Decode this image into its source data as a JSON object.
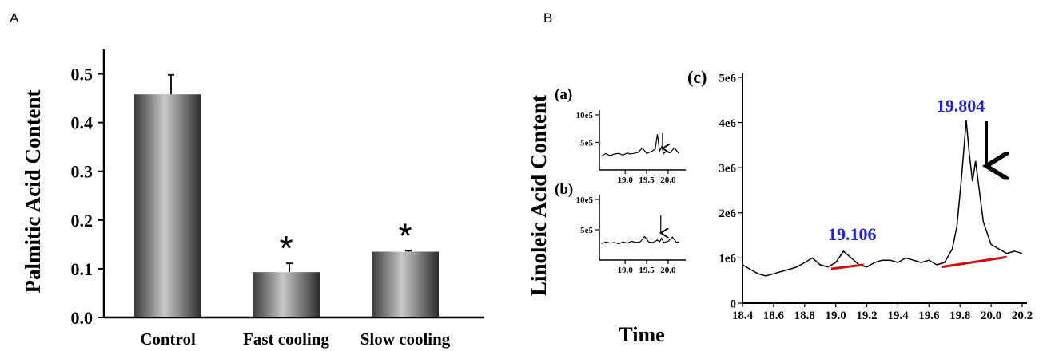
{
  "panels": {
    "a_letter": "A",
    "b_letter": "B"
  },
  "chart_data": [
    {
      "panel": "A",
      "type": "bar",
      "categories": [
        "Control",
        "Fast cooling",
        "Slow cooling"
      ],
      "values": [
        0.458,
        0.093,
        0.135
      ],
      "errors": [
        0.04,
        0.018,
        0.002
      ],
      "significance": [
        "",
        "*",
        "*"
      ],
      "ylabel": "Palmitic Acid Content",
      "xlabel": "",
      "ylim": [
        0,
        0.55
      ],
      "yticks": [
        "0.0",
        "0.1",
        "0.2",
        "0.3",
        "0.4",
        "0.5"
      ],
      "grid": false
    },
    {
      "panel": "B",
      "shared_ylabel": "Linoleic Acid Content",
      "shared_xlabel": "Time",
      "subplots": [
        {
          "label": "(a)",
          "type": "line",
          "xlim": [
            18.4,
            20.3
          ],
          "ylim": [
            0,
            1000000
          ],
          "yticks": [
            "5e5",
            "10e5"
          ],
          "xticks": [
            "19.0",
            "19.5",
            "20.0"
          ],
          "x": [
            18.45,
            18.55,
            18.65,
            18.75,
            18.85,
            18.95,
            19.05,
            19.1,
            19.2,
            19.3,
            19.4,
            19.5,
            19.6,
            19.7,
            19.75,
            19.8,
            19.85,
            19.9,
            19.95,
            20.05,
            20.15,
            20.25
          ],
          "y": [
            250000,
            300000,
            260000,
            290000,
            300000,
            270000,
            310000,
            290000,
            300000,
            320000,
            400000,
            300000,
            330000,
            380000,
            650000,
            340000,
            420000,
            300000,
            330000,
            320000,
            400000,
            300000
          ],
          "arrow_at_x": 19.87
        },
        {
          "label": "(b)",
          "type": "line",
          "xlim": [
            18.4,
            20.3
          ],
          "ylim": [
            0,
            1000000
          ],
          "yticks": [
            "5e5",
            "10e5"
          ],
          "xticks": [
            "19.0",
            "19.5",
            "20.0"
          ],
          "x": [
            18.45,
            18.55,
            18.65,
            18.75,
            18.85,
            18.95,
            19.05,
            19.15,
            19.25,
            19.35,
            19.45,
            19.55,
            19.65,
            19.75,
            19.8,
            19.85,
            19.9,
            20.0,
            20.1,
            20.2,
            20.25
          ],
          "y": [
            270000,
            300000,
            280000,
            290000,
            270000,
            300000,
            280000,
            310000,
            290000,
            300000,
            390000,
            300000,
            290000,
            330000,
            300000,
            360000,
            290000,
            310000,
            380000,
            290000,
            300000
          ],
          "arrow_at_x": 19.83
        },
        {
          "label": "(c)",
          "type": "line",
          "xlim": [
            18.4,
            20.2
          ],
          "ylim": [
            0,
            5000000
          ],
          "yticks": [
            "0",
            "1e6",
            "2e6",
            "3e6",
            "4e6",
            "5e6"
          ],
          "xticks": [
            "18.4",
            "18.6",
            "18.8",
            "19.0",
            "19.2",
            "19.4",
            "19.6",
            "19.8",
            "20.0",
            "20.2"
          ],
          "x": [
            18.4,
            18.45,
            18.5,
            18.55,
            18.6,
            18.65,
            18.7,
            18.75,
            18.8,
            18.85,
            18.9,
            18.95,
            19.0,
            19.05,
            19.1,
            19.15,
            19.2,
            19.25,
            19.3,
            19.35,
            19.4,
            19.45,
            19.5,
            19.55,
            19.6,
            19.65,
            19.7,
            19.75,
            19.78,
            19.81,
            19.84,
            19.86,
            19.88,
            19.9,
            19.92,
            19.95,
            19.98,
            20.0,
            20.05,
            20.1,
            20.15,
            20.2
          ],
          "y": [
            850000,
            750000,
            650000,
            600000,
            650000,
            700000,
            750000,
            800000,
            900000,
            1000000,
            850000,
            800000,
            900000,
            1150000,
            1000000,
            850000,
            800000,
            900000,
            950000,
            950000,
            900000,
            1000000,
            950000,
            900000,
            950000,
            850000,
            900000,
            1200000,
            1700000,
            2800000,
            4050000,
            3300000,
            2700000,
            3150000,
            2600000,
            1800000,
            1500000,
            1300000,
            1200000,
            1100000,
            1150000,
            1100000
          ],
          "peak_labels": [
            {
              "text": "19.106",
              "x": 19.106
            },
            {
              "text": "19.804",
              "x": 19.804
            }
          ],
          "baselines": [
            {
              "x": [
                18.97,
                19.18
              ],
              "y": [
                760000,
                850000
              ]
            },
            {
              "x": [
                19.68,
                20.1
              ],
              "y": [
                800000,
                1020000
              ]
            }
          ],
          "arrow_at_x": 19.97
        }
      ]
    }
  ]
}
